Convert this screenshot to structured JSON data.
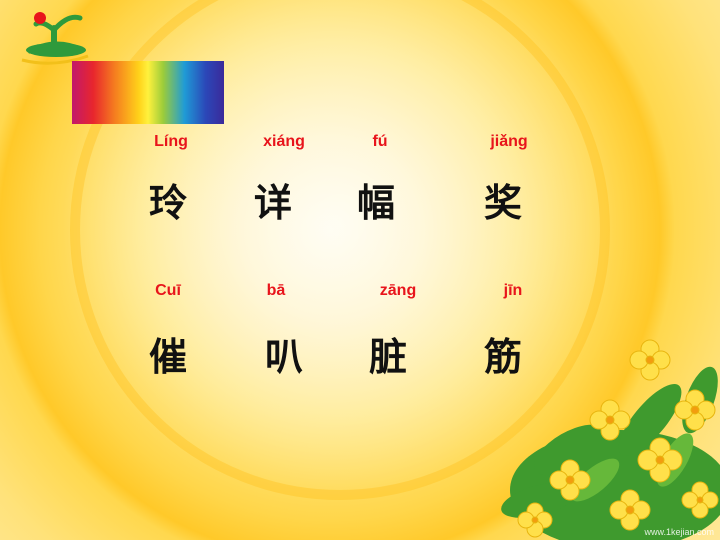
{
  "rows": [
    {
      "pinyin": [
        "Líng",
        "xiáng",
        "fú",
        "jiǎng"
      ],
      "hanzi": [
        "玲",
        "详",
        "幅",
        "奖"
      ]
    },
    {
      "pinyin": [
        "Cuī",
        "bā",
        "zāng",
        "jīn"
      ],
      "hanzi": [
        "催",
        "叭",
        "脏",
        "筋"
      ]
    }
  ],
  "colors": {
    "pinyin": "#e8141b",
    "hanzi": "#111111",
    "background": "#ffd64a"
  },
  "watermark": "www.1kejian.com"
}
